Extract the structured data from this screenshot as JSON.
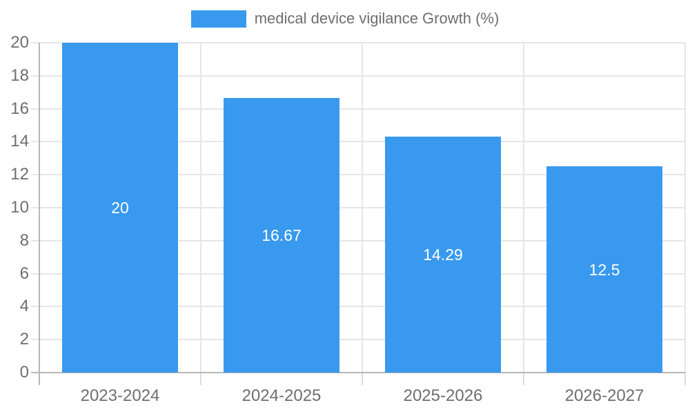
{
  "chart_data": {
    "type": "bar",
    "title": "",
    "legend": "medical device vigilance Growth (%)",
    "legend_position": "top-center",
    "categories": [
      "2023-2024",
      "2024-2025",
      "2025-2026",
      "2026-2027"
    ],
    "series": [
      {
        "name": "medical device vigilance Growth (%)",
        "values": [
          20,
          16.67,
          14.29,
          12.5
        ],
        "value_labels": [
          "20",
          "16.67",
          "14.29",
          "12.5"
        ]
      }
    ],
    "xlabel": "",
    "ylabel": "",
    "ylim": [
      0,
      20
    ],
    "ytick_step": 2,
    "ytick_labels": [
      "0",
      "2",
      "4",
      "6",
      "8",
      "10",
      "12",
      "14",
      "16",
      "18",
      "20"
    ],
    "grid": "on",
    "colors": {
      "bar": "#3899ee",
      "grid": "#e6e6e6",
      "axis": "#b6b6b6",
      "tick_text": "#6e6e6e",
      "legend_text": "#6e6e6e",
      "value_label": "#ffffff",
      "background": "#ffffff"
    }
  }
}
